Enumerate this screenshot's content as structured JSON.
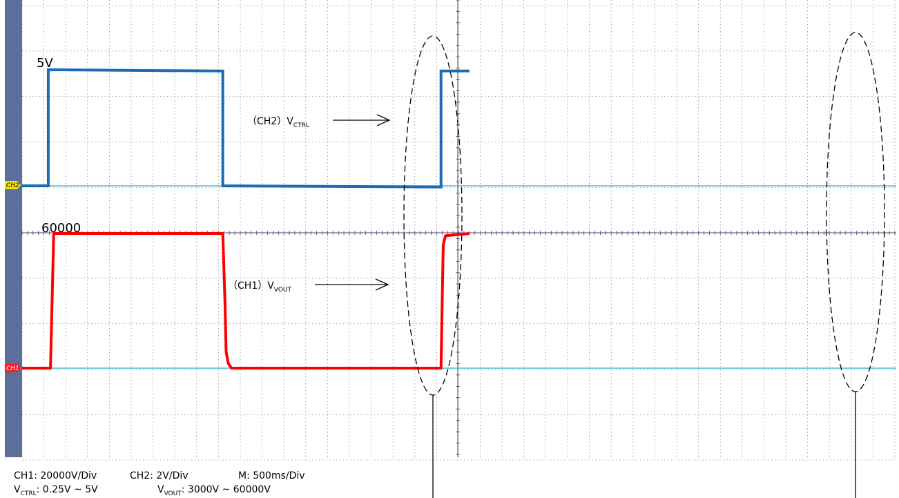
{
  "chart_data": {
    "type": "line",
    "grid": true,
    "x_divisions": 20,
    "y_divisions": 10,
    "x_unit_per_div": "500ms",
    "series": [
      {
        "name": "V_CTRL",
        "channel": "CH2",
        "color": "#1a6cb5",
        "points": [
          [
            0,
            0.25
          ],
          [
            1.2,
            0.25
          ],
          [
            1.2,
            5
          ],
          [
            9.2,
            4.95
          ],
          [
            9.2,
            0.25
          ],
          [
            19.2,
            0.2
          ],
          [
            19.2,
            4.95
          ],
          [
            20.5,
            4.95
          ]
        ]
      },
      {
        "name": "V_VOUT",
        "channel": "CH1",
        "color": "#ff0000",
        "points": [
          [
            0,
            3000
          ],
          [
            1.3,
            3000
          ],
          [
            1.45,
            60000
          ],
          [
            9.2,
            60000
          ],
          [
            9.3,
            30000
          ],
          [
            9.35,
            10000
          ],
          [
            9.45,
            5000
          ],
          [
            9.6,
            3000
          ],
          [
            19.2,
            3000
          ],
          [
            19.3,
            55000
          ],
          [
            19.4,
            59000
          ],
          [
            20.5,
            60000
          ]
        ]
      }
    ]
  },
  "labels": {
    "ch2_max": "5V",
    "ch1_max": "60000",
    "ch2_arrow_prefix": "（CH2）V",
    "ch2_arrow_sub": "CTRL",
    "ch1_arrow_prefix": "（CH1）V",
    "ch1_arrow_sub": "VOUT",
    "ch2_marker": "CH2",
    "ch1_marker": "CH1"
  },
  "footer": {
    "ch1_scale": "CH1: 20000V/Div",
    "ch2_scale": "CH2: 2V/Div",
    "time_scale": "M: 500ms/Div",
    "vctrl_prefix": "V",
    "vctrl_sub": "CTRL",
    "vctrl_range": ": 0.25V ~ 5V",
    "vvout_prefix": "V",
    "vvout_sub": "VOUT",
    "vvout_range": ": 3000V ~ 60000V"
  }
}
